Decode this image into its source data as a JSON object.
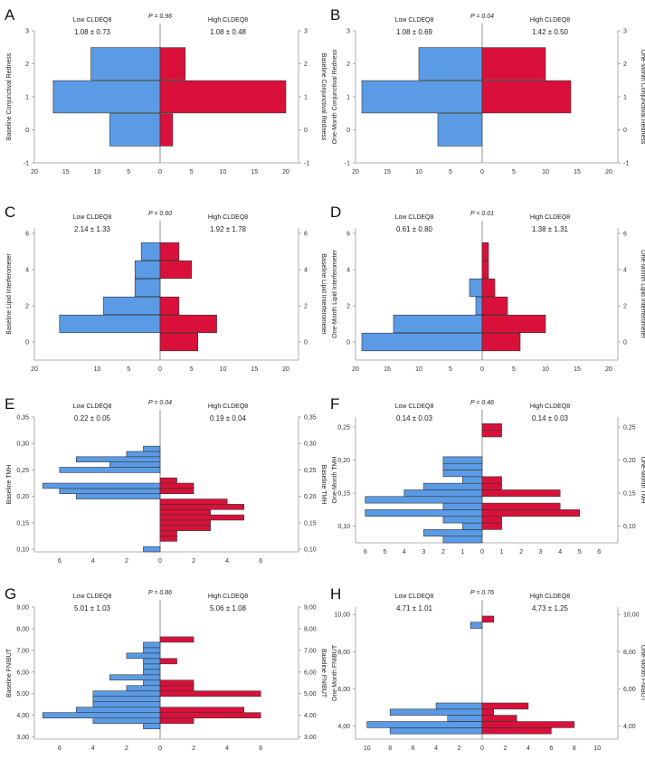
{
  "colors": {
    "low": "#5B9BE5",
    "high": "#D9113A"
  },
  "chart_data": [
    {
      "letter": "A",
      "type": "bar",
      "orientation": "population-pyramid",
      "p_label": "P = 0.96",
      "left_group": "Low CLDEQ8",
      "right_group": "High CLDEQ8",
      "left_stat": "1.08 ± 0.73",
      "right_stat": "1.08 ± 0.48",
      "ylabel_left": "Baseline Conjunctival Redness",
      "ylabel_right": "Baseline Conjunctival Redness",
      "ylim": [
        -1,
        3
      ],
      "yticks": [
        "-1",
        "0",
        "1",
        "2",
        "3"
      ],
      "xmax": 20,
      "xticks": [
        "20",
        "15",
        "10",
        "5",
        "0",
        "5",
        "10",
        "15",
        "20"
      ],
      "categories": [
        0,
        1,
        2
      ],
      "low_values": [
        8,
        17,
        11
      ],
      "high_values": [
        2,
        20,
        4
      ]
    },
    {
      "letter": "B",
      "type": "bar",
      "orientation": "population-pyramid",
      "p_label": "P = 0.04",
      "left_group": "Low CLDEQ8",
      "right_group": "High CLDEQ8",
      "left_stat": "1.08 ± 0.69",
      "right_stat": "1.42 ± 0.50",
      "ylabel_left": "One-Month Conjunctival Redness",
      "ylabel_right": "One-Month Conjunctival Redness",
      "ylim": [
        -1,
        3
      ],
      "yticks": [
        "-1",
        "0",
        "1",
        "2",
        "3"
      ],
      "xmax": 20,
      "xticks": [
        "20",
        "15",
        "10",
        "5",
        "0",
        "5",
        "10",
        "15",
        "20"
      ],
      "categories": [
        0,
        1,
        2
      ],
      "low_values": [
        7,
        19,
        10
      ],
      "high_values": [
        0,
        14,
        10
      ]
    },
    {
      "letter": "C",
      "type": "bar",
      "orientation": "population-pyramid",
      "p_label": "P = 0.60",
      "left_group": "Low CLDEQ8",
      "right_group": "High CLDEQ8",
      "left_stat": "2.14 ± 1.33",
      "right_stat": "1.92 ± 1.78",
      "ylabel_left": "Baseline Lipid Interferometer",
      "ylabel_right": "Baseline Lipid Interferometer",
      "ylim": [
        -1,
        6.3
      ],
      "yticks": [
        "0",
        "2",
        "4",
        "6"
      ],
      "xmax": 20,
      "xticks": [
        "20",
        "10",
        "5",
        "0",
        "5",
        "10",
        "15",
        "20"
      ],
      "categories": [
        0,
        1,
        2,
        3,
        4,
        5
      ],
      "low_values": [
        0,
        16,
        9,
        4,
        4,
        3
      ],
      "high_values": [
        6,
        9,
        3,
        0,
        5,
        3
      ]
    },
    {
      "letter": "D",
      "type": "bar",
      "orientation": "population-pyramid",
      "p_label": "P < 0.01",
      "left_group": "Low CLDEQ8",
      "right_group": "High CLDEQ8",
      "left_stat": "0.61 ± 0.80",
      "right_stat": "1.38 ± 1.31",
      "ylabel_left": "One-Month Lipid Interferometer",
      "ylabel_right": "One-Month Lipid Interferometer",
      "ylim": [
        -1,
        6.3
      ],
      "yticks": [
        "0",
        "2",
        "4",
        "6"
      ],
      "xmax": 20,
      "xticks": [
        "20",
        "15",
        "10",
        "5",
        "0",
        "5",
        "10",
        "15",
        "20"
      ],
      "categories": [
        0,
        1,
        2,
        3,
        4,
        5
      ],
      "low_values": [
        19,
        14,
        1,
        2,
        0,
        0
      ],
      "high_values": [
        6,
        10,
        4,
        2,
        1,
        1
      ]
    },
    {
      "letter": "E",
      "type": "bar",
      "orientation": "population-pyramid",
      "p_label": "P = 0.04",
      "left_group": "Low CLDEQ8",
      "right_group": "High CLDEQ8",
      "left_stat": "0.22 ± 0.05",
      "right_stat": "0.19 ± 0.04",
      "ylabel_left": "Baseline TMH",
      "ylabel_right": "Baseline TMH",
      "ylim": [
        0.095,
        0.35
      ],
      "yticks": [
        "0,10",
        "0,15",
        "0,20",
        "0,25",
        "0,30",
        "0,35"
      ],
      "ytick_values": [
        0.1,
        0.15,
        0.2,
        0.25,
        0.3,
        0.35
      ],
      "xmax": 7.5,
      "xticks": [
        "6",
        "4",
        "2",
        "0",
        "2",
        "4",
        "6"
      ],
      "xtick_values": [
        -6,
        -4,
        -2,
        0,
        2,
        4,
        6
      ],
      "bin_width": 0.01,
      "categories": [
        0.1,
        0.11,
        0.12,
        0.13,
        0.14,
        0.15,
        0.16,
        0.17,
        0.18,
        0.19,
        0.2,
        0.21,
        0.22,
        0.23,
        0.24,
        0.25,
        0.26,
        0.27,
        0.28,
        0.29,
        0.3,
        0.31,
        0.32,
        0.33,
        0.34
      ],
      "low_values": [
        1,
        0,
        0,
        0,
        0,
        0,
        0,
        0,
        0,
        0,
        5,
        6,
        7,
        0,
        0,
        6,
        3,
        5,
        2,
        1,
        0,
        0,
        0,
        0,
        0
      ],
      "high_values": [
        0,
        0,
        1,
        1,
        3,
        3,
        5,
        3,
        5,
        4,
        0,
        2,
        2,
        1,
        0,
        0,
        0,
        0,
        0,
        0,
        0,
        0,
        0,
        0,
        0
      ]
    },
    {
      "letter": "F",
      "type": "bar",
      "orientation": "population-pyramid",
      "p_label": "P = 0.46",
      "left_group": "Low CLDEQ8",
      "right_group": "High CLDEQ8",
      "left_stat": "0.14 ± 0.03",
      "right_stat": "0.14 ± 0.03",
      "ylabel_left": "One-Month TMH",
      "ylabel_right": "One-Month TMH",
      "ylim": [
        0.075,
        0.265
      ],
      "yticks": [
        "0,10",
        "0,15",
        "0,20",
        "0,25"
      ],
      "ytick_values": [
        0.1,
        0.15,
        0.2,
        0.25
      ],
      "xmax": 6.5,
      "xticks": [
        "6",
        "5",
        "4",
        "3",
        "2",
        "1",
        "0",
        "1",
        "2",
        "3",
        "4",
        "5",
        "6"
      ],
      "xtick_values": [
        -6,
        -5,
        -4,
        -3,
        -2,
        -1,
        0,
        1,
        2,
        3,
        4,
        5,
        6
      ],
      "bin_width": 0.01,
      "categories": [
        0.08,
        0.09,
        0.1,
        0.11,
        0.12,
        0.13,
        0.14,
        0.15,
        0.16,
        0.17,
        0.18,
        0.19,
        0.2,
        0.21,
        0.22,
        0.23,
        0.24,
        0.25
      ],
      "low_values": [
        2,
        3,
        1,
        2,
        6,
        2,
        6,
        4,
        3,
        1,
        2,
        2,
        2,
        0,
        0,
        0,
        0,
        0
      ],
      "high_values": [
        0,
        0,
        1,
        1,
        5,
        4,
        0,
        4,
        1,
        1,
        0,
        0,
        0,
        0,
        0,
        0,
        1,
        1
      ]
    },
    {
      "letter": "G",
      "type": "bar",
      "orientation": "population-pyramid",
      "p_label": "P = 0.86",
      "left_group": "Low CLDEQ8",
      "right_group": "High CLDEQ8",
      "left_stat": "5.01 ± 1.03",
      "right_stat": "5.06 ± 1.08",
      "ylabel_left": "Baseline FNIBUT",
      "ylabel_right": "Baseline FNIBUT",
      "ylim": [
        2.9,
        9.0
      ],
      "yticks": [
        "3,00",
        "4,00",
        "5,00",
        "6,00",
        "7,00",
        "8,00",
        "9,00"
      ],
      "ytick_values": [
        3,
        4,
        5,
        6,
        7,
        8,
        9
      ],
      "xmax": 7.5,
      "xticks": [
        "6",
        "4",
        "2",
        "0",
        "2",
        "4",
        "6"
      ],
      "xtick_values": [
        -6,
        -4,
        -2,
        0,
        2,
        4,
        6
      ],
      "bin_width": 0.25,
      "categories": [
        3.5,
        3.75,
        4.0,
        4.25,
        4.5,
        4.75,
        5.0,
        5.25,
        5.5,
        5.75,
        6.0,
        6.25,
        6.5,
        6.75,
        7.0,
        7.25,
        7.5,
        7.75
      ],
      "low_values": [
        1,
        4,
        7,
        5,
        4,
        4,
        4,
        2,
        1,
        3,
        1,
        1,
        1,
        2,
        1,
        1,
        0,
        0
      ],
      "high_values": [
        0,
        2,
        6,
        5,
        0,
        0,
        6,
        2,
        2,
        0,
        0,
        0,
        1,
        0,
        0,
        0,
        2,
        0
      ]
    },
    {
      "letter": "H",
      "type": "bar",
      "orientation": "population-pyramid",
      "p_label": "P = 0.76",
      "left_group": "Low CLDEQ8",
      "right_group": "High CLDEQ8",
      "left_stat": "4.71 ± 1.01",
      "right_stat": "4.73 ± 1.25",
      "ylabel_left": "One-Month FNIBUT",
      "ylabel_right": "One-Month FNIBUT",
      "ylim": [
        3.3,
        10.4
      ],
      "yticks": [
        "4,00",
        "6,00",
        "8,00",
        "10,00"
      ],
      "ytick_values": [
        4,
        6,
        8,
        10
      ],
      "xmax": 11,
      "xticks": [
        "10",
        "8",
        "6",
        "4",
        "2",
        "0",
        "2",
        "4",
        "6",
        "8",
        "10"
      ],
      "xtick_values": [
        -10,
        -8,
        -6,
        -4,
        -2,
        0,
        2,
        4,
        6,
        8,
        10
      ],
      "bin_width": 0.33,
      "categories": [
        3.75,
        4.08,
        4.42,
        4.75,
        5.08,
        5.42,
        5.75,
        9.42,
        9.75
      ],
      "low_values": [
        8,
        10,
        3,
        8,
        4,
        0,
        0,
        1,
        0
      ],
      "high_values": [
        6,
        8,
        3,
        1,
        4,
        0,
        0,
        0,
        1
      ]
    }
  ]
}
